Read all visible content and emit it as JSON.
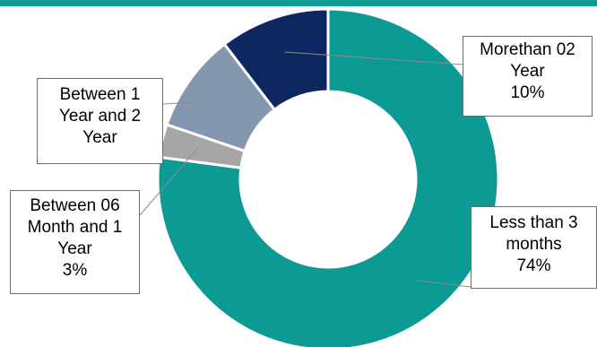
{
  "colors": {
    "top_bar": "#0f9c95",
    "leader": "#8c8c8c"
  },
  "chart_data": {
    "type": "pie",
    "donut": true,
    "title": "",
    "series": [
      {
        "category": "Less than 3 months",
        "value": 74,
        "color": "#0c9a94"
      },
      {
        "category": "Between 06 Month and 1 Year",
        "value": 3,
        "color": "#a6a6a6"
      },
      {
        "category": "Between 1 Year and 2 Year",
        "value": 9,
        "color": "#8497b0"
      },
      {
        "category": "Morethan 02 Year",
        "value": 10,
        "color": "#0d2860"
      }
    ]
  },
  "labels": {
    "more_than_2_year": {
      "line1": "Morethan 02",
      "line2": "Year",
      "line3": "10%"
    },
    "between_1_and_2_year": {
      "line1": "Between 1",
      "line2": "Year and 2",
      "line3": "Year"
    },
    "between_6m_and_1y": {
      "line1": "Between 06",
      "line2": "Month and 1",
      "line3": "Year",
      "line4": "3%"
    },
    "less_than_3_months": {
      "line1": "Less than 3",
      "line2": "months",
      "line3": "74%"
    }
  }
}
